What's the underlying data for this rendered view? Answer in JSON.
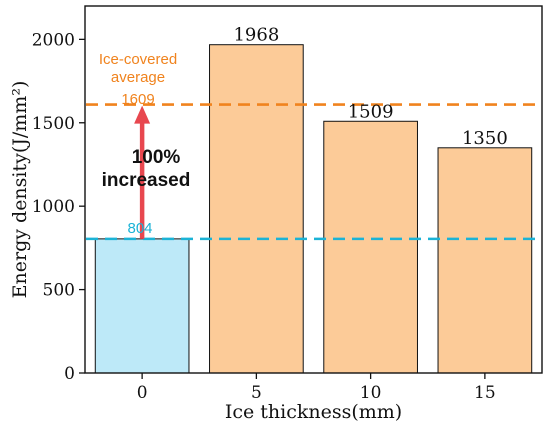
{
  "chart_data": {
    "type": "bar",
    "categories": [
      "0",
      "5",
      "10",
      "15"
    ],
    "values": [
      804,
      1968,
      1509,
      1350
    ],
    "data_labels": [
      "804",
      "1968",
      "1509",
      "1350"
    ],
    "bar_colors": [
      "#BDE9F8",
      "#FCCB98",
      "#FCCB98",
      "#FCCB98"
    ],
    "title": "",
    "xlabel": "Ice thickness(mm)",
    "ylabel": "Energy density(J/mm²)",
    "ylim": [
      0,
      2200
    ],
    "yticks": [
      0,
      500,
      1000,
      1500,
      2000
    ],
    "grid": false,
    "reference_lines": [
      {
        "value": 1609,
        "color": "#F0831E",
        "style": "dashed"
      },
      {
        "value": 804,
        "color": "#1BB3D6",
        "style": "dashed"
      }
    ],
    "annotations": {
      "ice_covered_line1": "Ice-covered",
      "ice_covered_line2": "average",
      "ice_covered_value": "1609",
      "increase_line1": "100%",
      "increase_line2": "increased",
      "baseline_value": "804"
    },
    "colors": {
      "orange_accent": "#F0831E",
      "blue_accent": "#1BB3D6",
      "arrow": "#E8474F"
    }
  }
}
